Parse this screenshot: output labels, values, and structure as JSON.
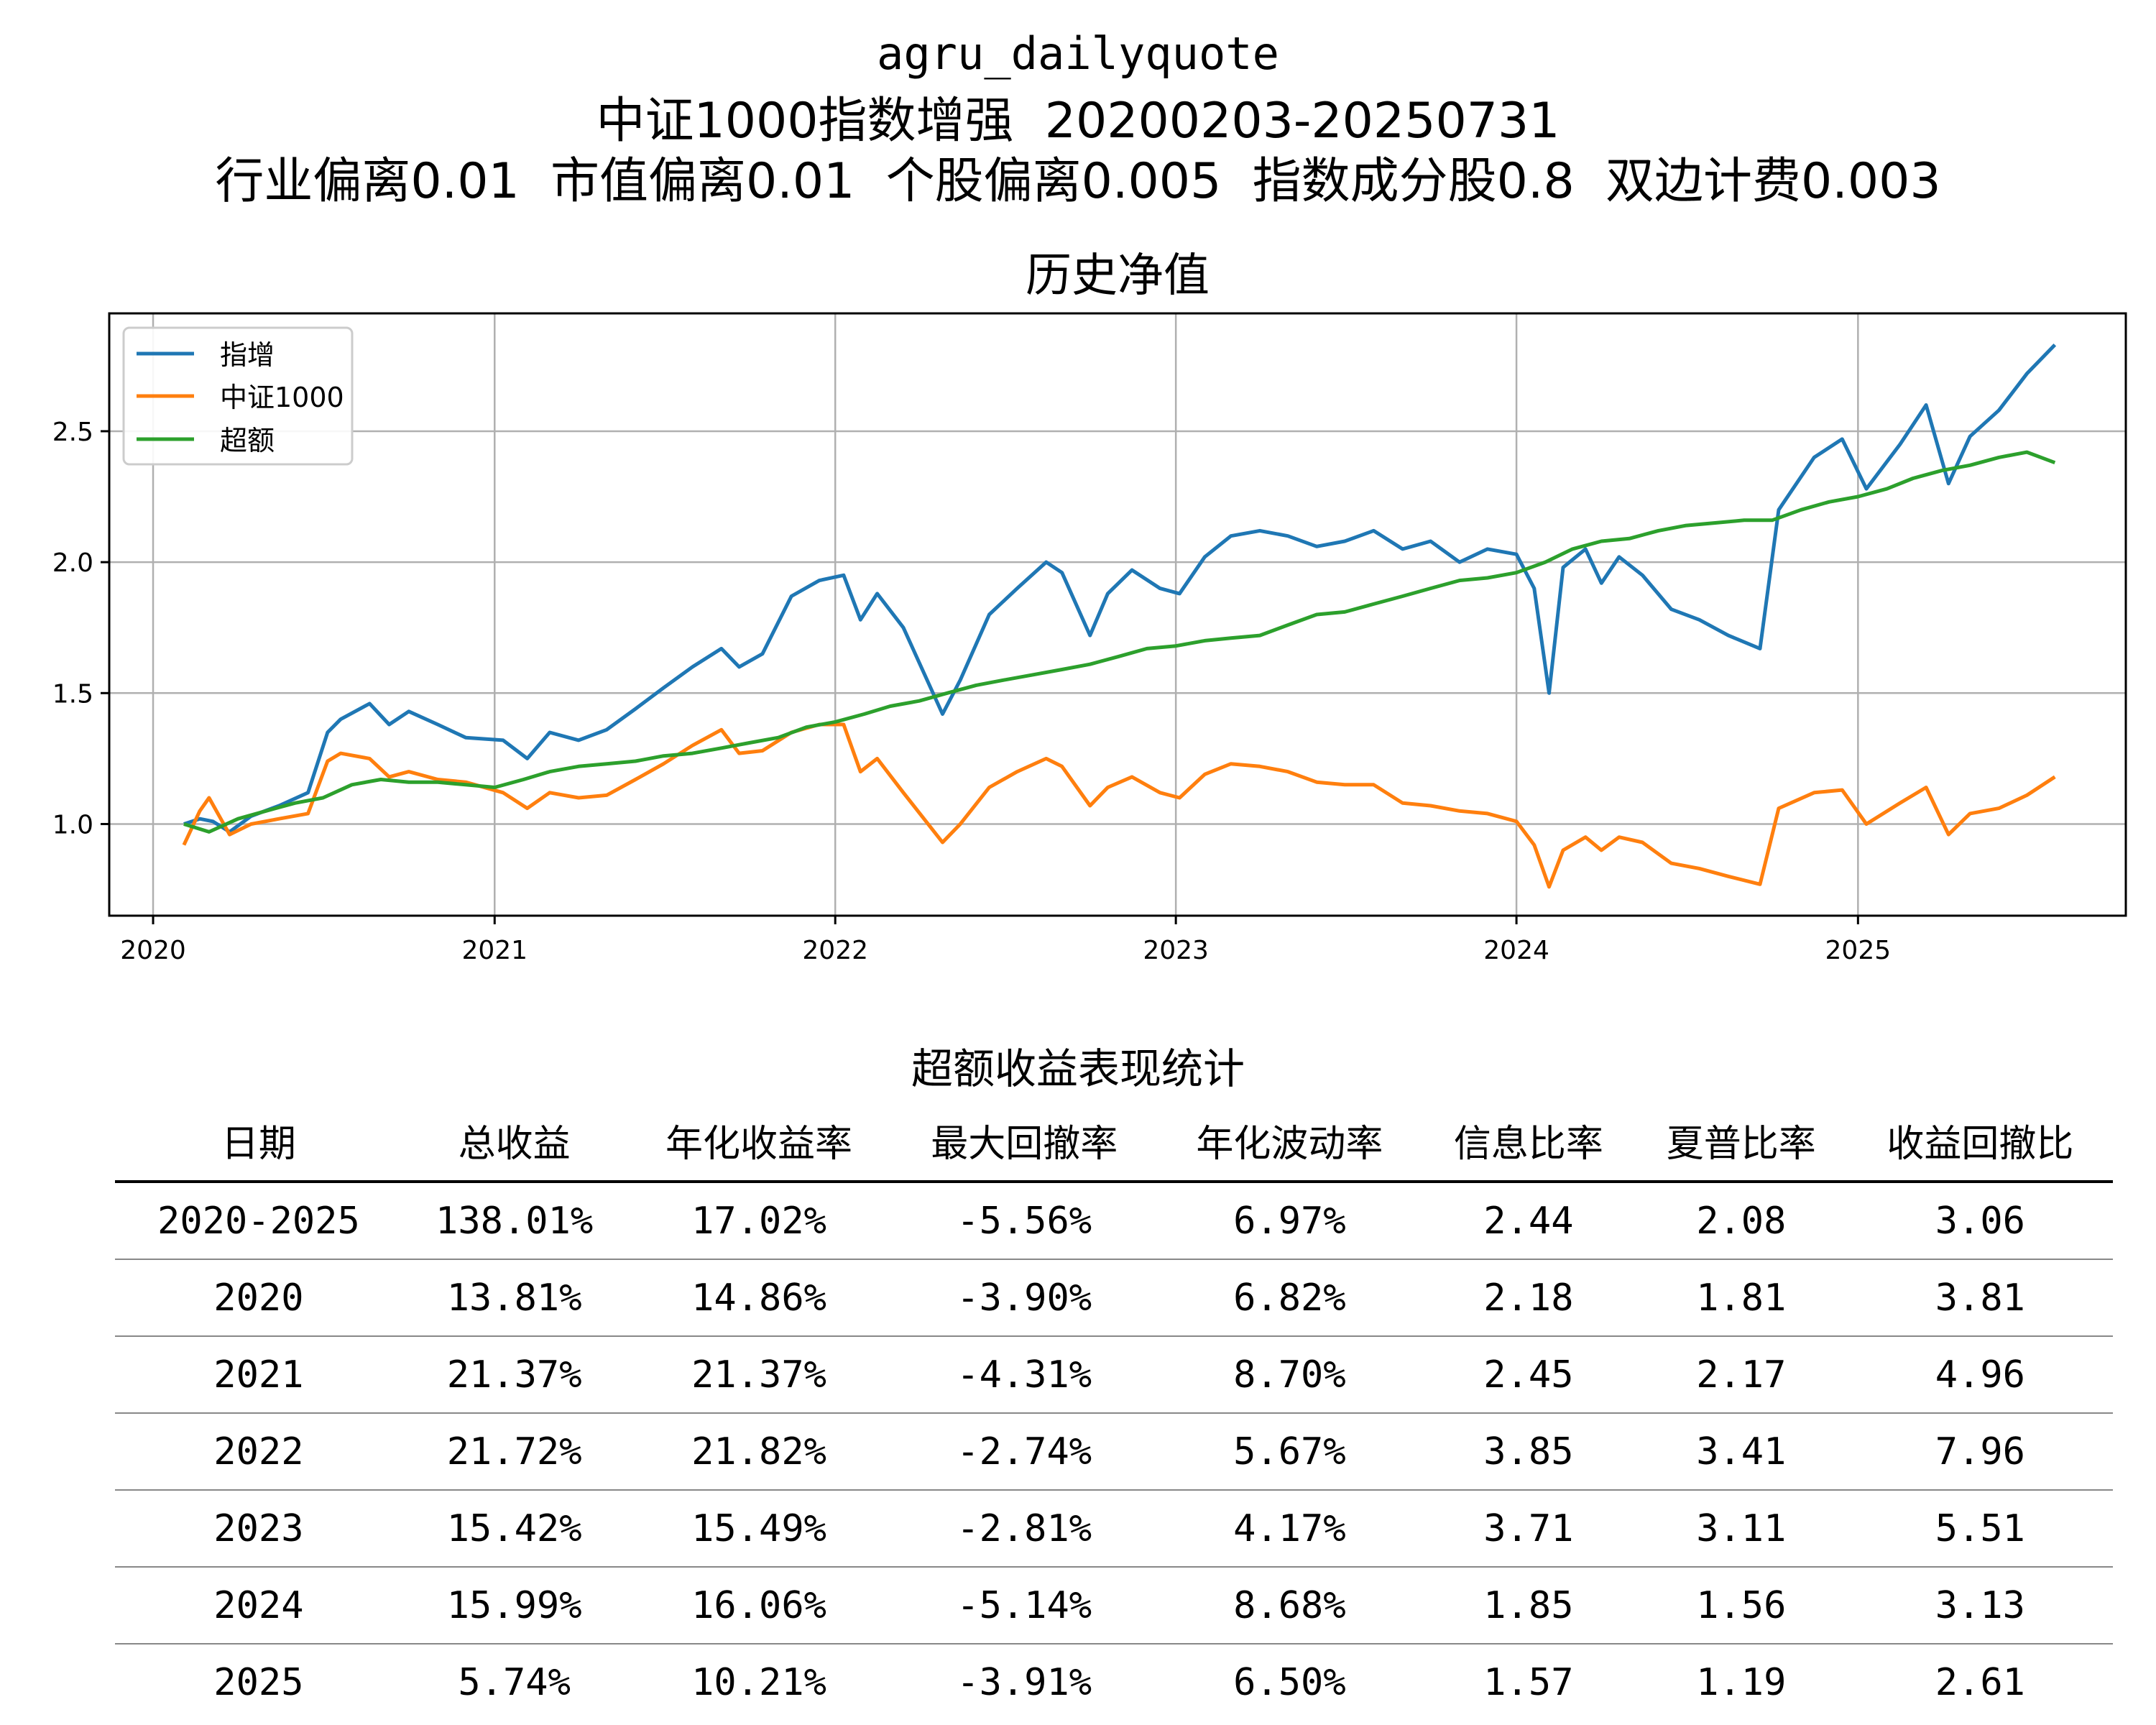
{
  "header": {
    "line1": "agru_dailyquote",
    "line2": "中证1000指数增强  20200203-20250731",
    "line3": "行业偏离0.01  市值偏离0.01  个股偏离0.005  指数成分股0.8  双边计费0.003"
  },
  "chart_data": {
    "type": "line",
    "title": "历史净值",
    "x_ticks": [
      "2020",
      "2021",
      "2022",
      "2023",
      "2024",
      "2025"
    ],
    "y_ticks": [
      "1.0",
      "1.5",
      "2.0",
      "2.5"
    ],
    "ylim": [
      0.65,
      2.95
    ],
    "xlim": [
      "2019-11-15",
      "2025-10-15"
    ],
    "grid": true,
    "legend_position": "top-left",
    "series": [
      {
        "name": "指增",
        "color": "#1f77b4",
        "points": [
          [
            "2020-02-03",
            1.0
          ],
          [
            "2020-02-20",
            1.02
          ],
          [
            "2020-03-05",
            1.01
          ],
          [
            "2020-03-23",
            0.97
          ],
          [
            "2020-04-15",
            1.03
          ],
          [
            "2020-05-15",
            1.07
          ],
          [
            "2020-06-15",
            1.12
          ],
          [
            "2020-07-06",
            1.35
          ],
          [
            "2020-07-20",
            1.4
          ],
          [
            "2020-08-20",
            1.46
          ],
          [
            "2020-09-10",
            1.38
          ],
          [
            "2020-10-01",
            1.43
          ],
          [
            "2020-11-01",
            1.38
          ],
          [
            "2020-12-01",
            1.33
          ],
          [
            "2021-01-10",
            1.32
          ],
          [
            "2021-02-05",
            1.25
          ],
          [
            "2021-03-01",
            1.35
          ],
          [
            "2021-04-01",
            1.32
          ],
          [
            "2021-05-01",
            1.36
          ],
          [
            "2021-06-01",
            1.44
          ],
          [
            "2021-07-01",
            1.52
          ],
          [
            "2021-08-01",
            1.6
          ],
          [
            "2021-09-01",
            1.67
          ],
          [
            "2021-09-20",
            1.6
          ],
          [
            "2021-10-15",
            1.65
          ],
          [
            "2021-11-15",
            1.87
          ],
          [
            "2021-12-15",
            1.93
          ],
          [
            "2022-01-10",
            1.95
          ],
          [
            "2022-01-28",
            1.78
          ],
          [
            "2022-02-15",
            1.88
          ],
          [
            "2022-03-15",
            1.75
          ],
          [
            "2022-04-26",
            1.42
          ],
          [
            "2022-05-15",
            1.55
          ],
          [
            "2022-06-15",
            1.8
          ],
          [
            "2022-07-15",
            1.9
          ],
          [
            "2022-08-15",
            2.0
          ],
          [
            "2022-09-01",
            1.96
          ],
          [
            "2022-10-01",
            1.72
          ],
          [
            "2022-10-20",
            1.88
          ],
          [
            "2022-11-15",
            1.97
          ],
          [
            "2022-12-15",
            1.9
          ],
          [
            "2023-01-05",
            1.88
          ],
          [
            "2023-02-01",
            2.02
          ],
          [
            "2023-03-01",
            2.1
          ],
          [
            "2023-04-01",
            2.12
          ],
          [
            "2023-05-01",
            2.1
          ],
          [
            "2023-06-01",
            2.06
          ],
          [
            "2023-07-01",
            2.08
          ],
          [
            "2023-08-01",
            2.12
          ],
          [
            "2023-09-01",
            2.05
          ],
          [
            "2023-10-01",
            2.08
          ],
          [
            "2023-11-01",
            2.0
          ],
          [
            "2023-12-01",
            2.05
          ],
          [
            "2024-01-01",
            2.03
          ],
          [
            "2024-01-20",
            1.9
          ],
          [
            "2024-02-05",
            1.5
          ],
          [
            "2024-02-20",
            1.98
          ],
          [
            "2024-03-15",
            2.05
          ],
          [
            "2024-04-01",
            1.92
          ],
          [
            "2024-04-20",
            2.02
          ],
          [
            "2024-05-15",
            1.95
          ],
          [
            "2024-06-15",
            1.82
          ],
          [
            "2024-07-15",
            1.78
          ],
          [
            "2024-08-15",
            1.72
          ],
          [
            "2024-09-18",
            1.67
          ],
          [
            "2024-10-08",
            2.2
          ],
          [
            "2024-11-15",
            2.4
          ],
          [
            "2024-12-15",
            2.47
          ],
          [
            "2025-01-10",
            2.28
          ],
          [
            "2025-02-15",
            2.45
          ],
          [
            "2025-03-15",
            2.6
          ],
          [
            "2025-04-08",
            2.3
          ],
          [
            "2025-05-01",
            2.48
          ],
          [
            "2025-06-01",
            2.58
          ],
          [
            "2025-07-01",
            2.72
          ],
          [
            "2025-07-31",
            2.83
          ]
        ]
      },
      {
        "name": "中证1000",
        "color": "#ff7f0e",
        "points": [
          [
            "2020-02-03",
            0.92
          ],
          [
            "2020-02-20",
            1.05
          ],
          [
            "2020-03-01",
            1.1
          ],
          [
            "2020-03-23",
            0.96
          ],
          [
            "2020-04-15",
            1.0
          ],
          [
            "2020-05-15",
            1.02
          ],
          [
            "2020-06-15",
            1.04
          ],
          [
            "2020-07-06",
            1.24
          ],
          [
            "2020-07-20",
            1.27
          ],
          [
            "2020-08-20",
            1.25
          ],
          [
            "2020-09-10",
            1.18
          ],
          [
            "2020-10-01",
            1.2
          ],
          [
            "2020-11-01",
            1.17
          ],
          [
            "2020-12-01",
            1.16
          ],
          [
            "2021-01-10",
            1.12
          ],
          [
            "2021-02-05",
            1.06
          ],
          [
            "2021-03-01",
            1.12
          ],
          [
            "2021-04-01",
            1.1
          ],
          [
            "2021-05-01",
            1.11
          ],
          [
            "2021-06-01",
            1.17
          ],
          [
            "2021-07-01",
            1.23
          ],
          [
            "2021-08-01",
            1.3
          ],
          [
            "2021-09-01",
            1.36
          ],
          [
            "2021-09-20",
            1.27
          ],
          [
            "2021-10-15",
            1.28
          ],
          [
            "2021-11-15",
            1.35
          ],
          [
            "2021-12-15",
            1.38
          ],
          [
            "2022-01-10",
            1.38
          ],
          [
            "2022-01-28",
            1.2
          ],
          [
            "2022-02-15",
            1.25
          ],
          [
            "2022-03-15",
            1.12
          ],
          [
            "2022-04-26",
            0.93
          ],
          [
            "2022-05-15",
            1.0
          ],
          [
            "2022-06-15",
            1.14
          ],
          [
            "2022-07-15",
            1.2
          ],
          [
            "2022-08-15",
            1.25
          ],
          [
            "2022-09-01",
            1.22
          ],
          [
            "2022-10-01",
            1.07
          ],
          [
            "2022-10-20",
            1.14
          ],
          [
            "2022-11-15",
            1.18
          ],
          [
            "2022-12-15",
            1.12
          ],
          [
            "2023-01-05",
            1.1
          ],
          [
            "2023-02-01",
            1.19
          ],
          [
            "2023-03-01",
            1.23
          ],
          [
            "2023-04-01",
            1.22
          ],
          [
            "2023-05-01",
            1.2
          ],
          [
            "2023-06-01",
            1.16
          ],
          [
            "2023-07-01",
            1.15
          ],
          [
            "2023-08-01",
            1.15
          ],
          [
            "2023-09-01",
            1.08
          ],
          [
            "2023-10-01",
            1.07
          ],
          [
            "2023-11-01",
            1.05
          ],
          [
            "2023-12-01",
            1.04
          ],
          [
            "2024-01-01",
            1.01
          ],
          [
            "2024-01-20",
            0.92
          ],
          [
            "2024-02-05",
            0.76
          ],
          [
            "2024-02-20",
            0.9
          ],
          [
            "2024-03-15",
            0.95
          ],
          [
            "2024-04-01",
            0.9
          ],
          [
            "2024-04-20",
            0.95
          ],
          [
            "2024-05-15",
            0.93
          ],
          [
            "2024-06-15",
            0.85
          ],
          [
            "2024-07-15",
            0.83
          ],
          [
            "2024-08-15",
            0.8
          ],
          [
            "2024-09-18",
            0.77
          ],
          [
            "2024-10-08",
            1.06
          ],
          [
            "2024-11-15",
            1.12
          ],
          [
            "2024-12-15",
            1.13
          ],
          [
            "2025-01-10",
            1.0
          ],
          [
            "2025-02-15",
            1.08
          ],
          [
            "2025-03-15",
            1.14
          ],
          [
            "2025-04-08",
            0.96
          ],
          [
            "2025-05-01",
            1.04
          ],
          [
            "2025-06-01",
            1.06
          ],
          [
            "2025-07-01",
            1.11
          ],
          [
            "2025-07-31",
            1.18
          ]
        ]
      },
      {
        "name": "超额",
        "color": "#2ca02c",
        "points": [
          [
            "2020-02-03",
            1.0
          ],
          [
            "2020-03-01",
            0.97
          ],
          [
            "2020-04-01",
            1.02
          ],
          [
            "2020-05-01",
            1.05
          ],
          [
            "2020-06-01",
            1.08
          ],
          [
            "2020-07-01",
            1.1
          ],
          [
            "2020-08-01",
            1.15
          ],
          [
            "2020-09-01",
            1.17
          ],
          [
            "2020-10-01",
            1.16
          ],
          [
            "2020-11-01",
            1.16
          ],
          [
            "2020-12-01",
            1.15
          ],
          [
            "2021-01-01",
            1.14
          ],
          [
            "2021-02-01",
            1.17
          ],
          [
            "2021-03-01",
            1.2
          ],
          [
            "2021-04-01",
            1.22
          ],
          [
            "2021-05-01",
            1.23
          ],
          [
            "2021-06-01",
            1.24
          ],
          [
            "2021-07-01",
            1.26
          ],
          [
            "2021-08-01",
            1.27
          ],
          [
            "2021-09-01",
            1.29
          ],
          [
            "2021-10-01",
            1.31
          ],
          [
            "2021-11-01",
            1.33
          ],
          [
            "2021-12-01",
            1.37
          ],
          [
            "2022-01-01",
            1.39
          ],
          [
            "2022-02-01",
            1.42
          ],
          [
            "2022-03-01",
            1.45
          ],
          [
            "2022-04-01",
            1.47
          ],
          [
            "2022-05-01",
            1.5
          ],
          [
            "2022-06-01",
            1.53
          ],
          [
            "2022-07-01",
            1.55
          ],
          [
            "2022-08-01",
            1.57
          ],
          [
            "2022-09-01",
            1.59
          ],
          [
            "2022-10-01",
            1.61
          ],
          [
            "2022-11-01",
            1.64
          ],
          [
            "2022-12-01",
            1.67
          ],
          [
            "2023-01-01",
            1.68
          ],
          [
            "2023-02-01",
            1.7
          ],
          [
            "2023-03-01",
            1.71
          ],
          [
            "2023-04-01",
            1.72
          ],
          [
            "2023-05-01",
            1.76
          ],
          [
            "2023-06-01",
            1.8
          ],
          [
            "2023-07-01",
            1.81
          ],
          [
            "2023-08-01",
            1.84
          ],
          [
            "2023-09-01",
            1.87
          ],
          [
            "2023-10-01",
            1.9
          ],
          [
            "2023-11-01",
            1.93
          ],
          [
            "2023-12-01",
            1.94
          ],
          [
            "2024-01-01",
            1.96
          ],
          [
            "2024-02-01",
            2.0
          ],
          [
            "2024-03-01",
            2.05
          ],
          [
            "2024-04-01",
            2.08
          ],
          [
            "2024-05-01",
            2.09
          ],
          [
            "2024-06-01",
            2.12
          ],
          [
            "2024-07-01",
            2.14
          ],
          [
            "2024-08-01",
            2.15
          ],
          [
            "2024-09-01",
            2.16
          ],
          [
            "2024-10-01",
            2.16
          ],
          [
            "2024-11-01",
            2.2
          ],
          [
            "2024-12-01",
            2.23
          ],
          [
            "2025-01-01",
            2.25
          ],
          [
            "2025-02-01",
            2.28
          ],
          [
            "2025-03-01",
            2.32
          ],
          [
            "2025-04-01",
            2.35
          ],
          [
            "2025-05-01",
            2.37
          ],
          [
            "2025-06-01",
            2.4
          ],
          [
            "2025-07-01",
            2.42
          ],
          [
            "2025-07-31",
            2.38
          ]
        ]
      }
    ]
  },
  "table": {
    "title": "超额收益表现统计",
    "headers": [
      "日期",
      "总收益",
      "年化收益率",
      "最大回撤率",
      "年化波动率",
      "信息比率",
      "夏普比率",
      "收益回撤比"
    ],
    "rows": [
      [
        "2020-2025",
        "138.01%",
        "17.02%",
        "-5.56%",
        "6.97%",
        "2.44",
        "2.08",
        "3.06"
      ],
      [
        "2020",
        "13.81%",
        "14.86%",
        "-3.90%",
        "6.82%",
        "2.18",
        "1.81",
        "3.81"
      ],
      [
        "2021",
        "21.37%",
        "21.37%",
        "-4.31%",
        "8.70%",
        "2.45",
        "2.17",
        "4.96"
      ],
      [
        "2022",
        "21.72%",
        "21.82%",
        "-2.74%",
        "5.67%",
        "3.85",
        "3.41",
        "7.96"
      ],
      [
        "2023",
        "15.42%",
        "15.49%",
        "-2.81%",
        "4.17%",
        "3.71",
        "3.11",
        "5.51"
      ],
      [
        "2024",
        "15.99%",
        "16.06%",
        "-5.14%",
        "8.68%",
        "1.85",
        "1.56",
        "3.13"
      ],
      [
        "2025",
        "5.74%",
        "10.21%",
        "-3.91%",
        "6.50%",
        "1.57",
        "1.19",
        "2.61"
      ]
    ]
  }
}
